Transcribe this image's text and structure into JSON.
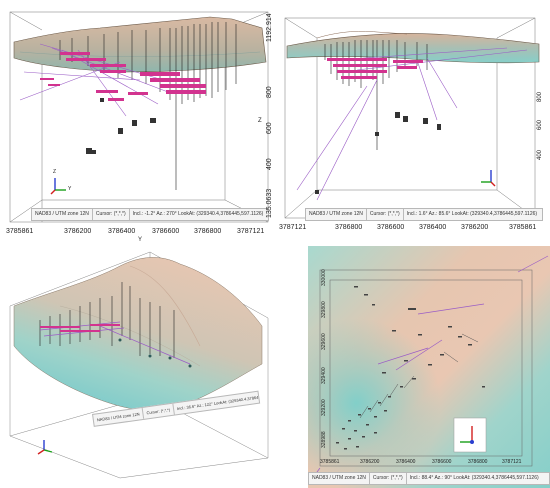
{
  "colors": {
    "terrain_high": "#e9c4ad",
    "terrain_low": "#8ad0cc",
    "drillhole": "#222222",
    "pink_label": "#d2338f",
    "trace_purple": "#9a5cc6",
    "axis_x": "#d22020",
    "axis_y": "#19a019",
    "axis_z": "#2a3ed0"
  },
  "panel1": {
    "status": {
      "proj": "NAD83 / UTM zone 12N",
      "cursor": "Cursor: (*,*,*)",
      "view": "Incl.: -1.2° Az.: 270° LookAt: (329340.4,3786445,597.1126)"
    },
    "x_ticks": [
      "3785861",
      "3786200",
      "3786400",
      "3786600",
      "3786800",
      "3787121"
    ],
    "x_label": "Y",
    "z_ticks": [
      "1192.914",
      "800",
      "600",
      "400",
      "135.0633"
    ],
    "z_label": "Z",
    "axis_icon_labels": {
      "z": "Z",
      "y": "Y"
    }
  },
  "panel2": {
    "status": {
      "proj": "NAD83 / UTM zone 12N",
      "cursor": "Cursor: (*,*,*)",
      "view": "Incl.: 1.6° Az.: 85.6° LookAt: (329340.4,3786445,597.1126)"
    },
    "x_ticks": [
      "3787121",
      "3786800",
      "3786600",
      "3786400",
      "3786200",
      "3785861"
    ],
    "z_ticks": [
      "800",
      "600",
      "400"
    ]
  },
  "panel3": {
    "status": {
      "proj": "NAD83 / UTM zone 12N",
      "cursor": "Cursor: (*,*,*)",
      "view": "Incl.: 36.6° Az.: 122° LookAt: (329340.4,3786445,597.1126)"
    }
  },
  "panel4": {
    "status": {
      "proj": "NAD83 / UTM zone 12N",
      "cursor": "Cursor: (*,*,*)",
      "view": "Incl.: 88.4° Az.: 90° LookAt: (329340.4,3786445,597.1126)"
    },
    "x_ticks": [
      "3785861",
      "3786200",
      "3786400",
      "3786600",
      "3786800",
      "3787121"
    ],
    "y_ticks": [
      "328988",
      "329200",
      "329400",
      "329600",
      "329800",
      "330000"
    ]
  }
}
